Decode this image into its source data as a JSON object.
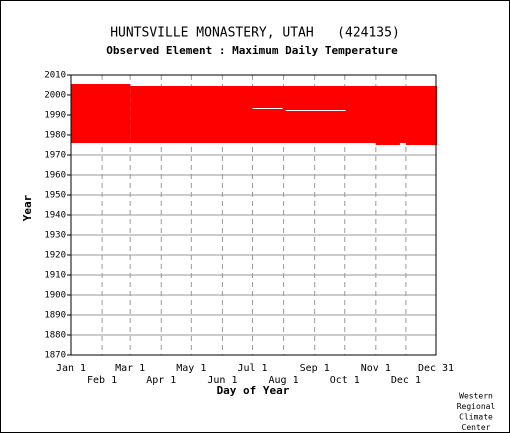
{
  "chart_data": {
    "type": "range",
    "title": "HUNTSVILLE MONASTERY, UTAH   (424135)",
    "subtitle": "Observed Element : Maximum Daily Temperature",
    "x_label": "Day of Year",
    "y_label": "Year",
    "color": "#ff0000",
    "gap_color": "#ffffff",
    "grid": true,
    "xlim": [
      1,
      365
    ],
    "ylim": [
      1870,
      2010
    ],
    "xticks": [
      {
        "value": 1,
        "label": "Jan 1"
      },
      {
        "value": 32,
        "label": "Feb 1"
      },
      {
        "value": 60,
        "label": "Mar 1"
      },
      {
        "value": 91,
        "label": "Apr 1"
      },
      {
        "value": 121,
        "label": "May 1"
      },
      {
        "value": 152,
        "label": "Jun 1"
      },
      {
        "value": 182,
        "label": "Jul 1"
      },
      {
        "value": 213,
        "label": "Aug 1"
      },
      {
        "value": 244,
        "label": "Sep 1"
      },
      {
        "value": 274,
        "label": "Oct 1"
      },
      {
        "value": 305,
        "label": "Nov 1"
      },
      {
        "value": 335,
        "label": "Dec 1"
      },
      {
        "value": 365,
        "label": "Dec 31"
      }
    ],
    "yticks": [
      1870,
      1880,
      1890,
      1900,
      1910,
      1920,
      1930,
      1940,
      1950,
      1960,
      1970,
      1980,
      1990,
      2000,
      2010
    ],
    "blocks": [
      {
        "days": [
          1,
          59
        ],
        "years": [
          1976,
          2005.5
        ]
      },
      {
        "days": [
          60,
          365
        ],
        "years": [
          1976,
          2004.5
        ]
      },
      {
        "days": [
          305,
          328
        ],
        "years": [
          1975,
          1976
        ]
      },
      {
        "days": [
          335,
          365
        ],
        "years": [
          1975,
          1976
        ]
      }
    ],
    "gaps": [
      {
        "days": [
          182,
          212
        ],
        "years": [
          1993,
          1993.5
        ]
      },
      {
        "days": [
          215,
          275
        ],
        "years": [
          1992,
          1992.5
        ]
      }
    ],
    "credit": [
      "Western",
      "Regional",
      "Climate",
      "Center"
    ]
  }
}
